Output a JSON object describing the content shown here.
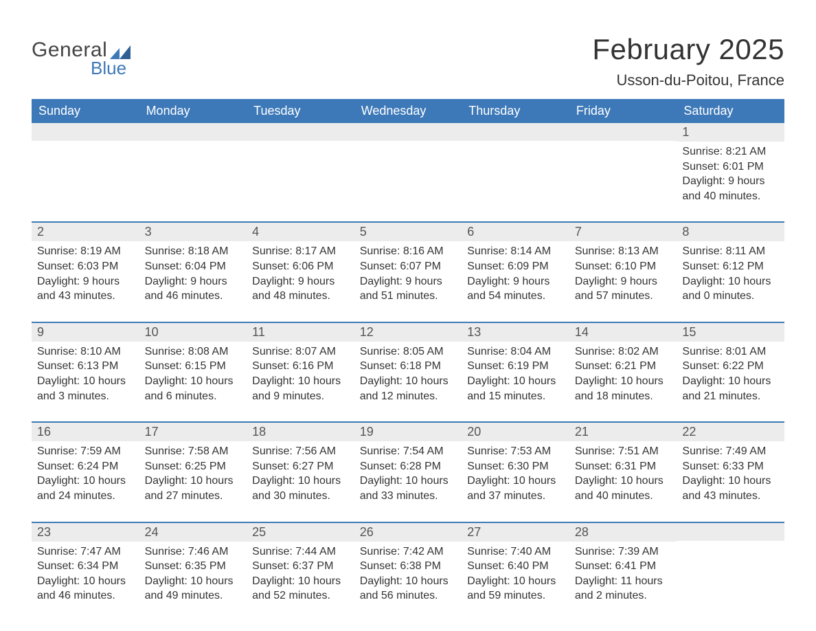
{
  "logo": {
    "general": "General",
    "blue": "Blue"
  },
  "title": "February 2025",
  "subtitle": "Usson-du-Poitou, France",
  "colors": {
    "header_bg": "#3d79b8",
    "header_text": "#ffffff",
    "daynum_bg": "#ececec",
    "text": "#333333",
    "logo_gray": "#444444",
    "logo_blue": "#3d79b8",
    "page_bg": "#ffffff"
  },
  "typography": {
    "title_fontsize": 42,
    "subtitle_fontsize": 22,
    "header_fontsize": 18,
    "daynum_fontsize": 18,
    "body_fontsize": 16
  },
  "calendar": {
    "type": "table",
    "columns": [
      "Sunday",
      "Monday",
      "Tuesday",
      "Wednesday",
      "Thursday",
      "Friday",
      "Saturday"
    ],
    "weeks": [
      [
        null,
        null,
        null,
        null,
        null,
        null,
        {
          "n": "1",
          "sunrise": "Sunrise: 8:21 AM",
          "sunset": "Sunset: 6:01 PM",
          "daylight": "Daylight: 9 hours and 40 minutes."
        }
      ],
      [
        {
          "n": "2",
          "sunrise": "Sunrise: 8:19 AM",
          "sunset": "Sunset: 6:03 PM",
          "daylight": "Daylight: 9 hours and 43 minutes."
        },
        {
          "n": "3",
          "sunrise": "Sunrise: 8:18 AM",
          "sunset": "Sunset: 6:04 PM",
          "daylight": "Daylight: 9 hours and 46 minutes."
        },
        {
          "n": "4",
          "sunrise": "Sunrise: 8:17 AM",
          "sunset": "Sunset: 6:06 PM",
          "daylight": "Daylight: 9 hours and 48 minutes."
        },
        {
          "n": "5",
          "sunrise": "Sunrise: 8:16 AM",
          "sunset": "Sunset: 6:07 PM",
          "daylight": "Daylight: 9 hours and 51 minutes."
        },
        {
          "n": "6",
          "sunrise": "Sunrise: 8:14 AM",
          "sunset": "Sunset: 6:09 PM",
          "daylight": "Daylight: 9 hours and 54 minutes."
        },
        {
          "n": "7",
          "sunrise": "Sunrise: 8:13 AM",
          "sunset": "Sunset: 6:10 PM",
          "daylight": "Daylight: 9 hours and 57 minutes."
        },
        {
          "n": "8",
          "sunrise": "Sunrise: 8:11 AM",
          "sunset": "Sunset: 6:12 PM",
          "daylight": "Daylight: 10 hours and 0 minutes."
        }
      ],
      [
        {
          "n": "9",
          "sunrise": "Sunrise: 8:10 AM",
          "sunset": "Sunset: 6:13 PM",
          "daylight": "Daylight: 10 hours and 3 minutes."
        },
        {
          "n": "10",
          "sunrise": "Sunrise: 8:08 AM",
          "sunset": "Sunset: 6:15 PM",
          "daylight": "Daylight: 10 hours and 6 minutes."
        },
        {
          "n": "11",
          "sunrise": "Sunrise: 8:07 AM",
          "sunset": "Sunset: 6:16 PM",
          "daylight": "Daylight: 10 hours and 9 minutes."
        },
        {
          "n": "12",
          "sunrise": "Sunrise: 8:05 AM",
          "sunset": "Sunset: 6:18 PM",
          "daylight": "Daylight: 10 hours and 12 minutes."
        },
        {
          "n": "13",
          "sunrise": "Sunrise: 8:04 AM",
          "sunset": "Sunset: 6:19 PM",
          "daylight": "Daylight: 10 hours and 15 minutes."
        },
        {
          "n": "14",
          "sunrise": "Sunrise: 8:02 AM",
          "sunset": "Sunset: 6:21 PM",
          "daylight": "Daylight: 10 hours and 18 minutes."
        },
        {
          "n": "15",
          "sunrise": "Sunrise: 8:01 AM",
          "sunset": "Sunset: 6:22 PM",
          "daylight": "Daylight: 10 hours and 21 minutes."
        }
      ],
      [
        {
          "n": "16",
          "sunrise": "Sunrise: 7:59 AM",
          "sunset": "Sunset: 6:24 PM",
          "daylight": "Daylight: 10 hours and 24 minutes."
        },
        {
          "n": "17",
          "sunrise": "Sunrise: 7:58 AM",
          "sunset": "Sunset: 6:25 PM",
          "daylight": "Daylight: 10 hours and 27 minutes."
        },
        {
          "n": "18",
          "sunrise": "Sunrise: 7:56 AM",
          "sunset": "Sunset: 6:27 PM",
          "daylight": "Daylight: 10 hours and 30 minutes."
        },
        {
          "n": "19",
          "sunrise": "Sunrise: 7:54 AM",
          "sunset": "Sunset: 6:28 PM",
          "daylight": "Daylight: 10 hours and 33 minutes."
        },
        {
          "n": "20",
          "sunrise": "Sunrise: 7:53 AM",
          "sunset": "Sunset: 6:30 PM",
          "daylight": "Daylight: 10 hours and 37 minutes."
        },
        {
          "n": "21",
          "sunrise": "Sunrise: 7:51 AM",
          "sunset": "Sunset: 6:31 PM",
          "daylight": "Daylight: 10 hours and 40 minutes."
        },
        {
          "n": "22",
          "sunrise": "Sunrise: 7:49 AM",
          "sunset": "Sunset: 6:33 PM",
          "daylight": "Daylight: 10 hours and 43 minutes."
        }
      ],
      [
        {
          "n": "23",
          "sunrise": "Sunrise: 7:47 AM",
          "sunset": "Sunset: 6:34 PM",
          "daylight": "Daylight: 10 hours and 46 minutes."
        },
        {
          "n": "24",
          "sunrise": "Sunrise: 7:46 AM",
          "sunset": "Sunset: 6:35 PM",
          "daylight": "Daylight: 10 hours and 49 minutes."
        },
        {
          "n": "25",
          "sunrise": "Sunrise: 7:44 AM",
          "sunset": "Sunset: 6:37 PM",
          "daylight": "Daylight: 10 hours and 52 minutes."
        },
        {
          "n": "26",
          "sunrise": "Sunrise: 7:42 AM",
          "sunset": "Sunset: 6:38 PM",
          "daylight": "Daylight: 10 hours and 56 minutes."
        },
        {
          "n": "27",
          "sunrise": "Sunrise: 7:40 AM",
          "sunset": "Sunset: 6:40 PM",
          "daylight": "Daylight: 10 hours and 59 minutes."
        },
        {
          "n": "28",
          "sunrise": "Sunrise: 7:39 AM",
          "sunset": "Sunset: 6:41 PM",
          "daylight": "Daylight: 11 hours and 2 minutes."
        },
        null
      ]
    ]
  }
}
